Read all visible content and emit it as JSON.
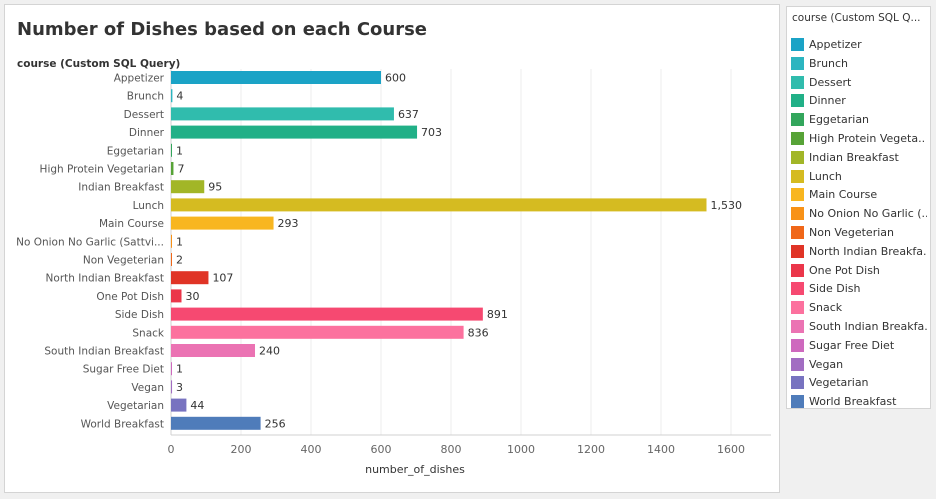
{
  "chart_data": {
    "type": "bar",
    "orientation": "horizontal",
    "title": "Number of Dishes based on each Course",
    "ylabel": "course (Custom SQL Query)",
    "xlabel": "number_of_dishes",
    "xlim": [
      0,
      1700
    ],
    "xticks": [
      "0",
      "200",
      "400",
      "600",
      "800",
      "1000",
      "1200",
      "1400",
      "1600"
    ],
    "grid": true,
    "legend_position": "right",
    "legend_title": "course (Custom SQL Q...",
    "categories": [
      "Appetizer",
      "Brunch",
      "Dessert",
      "Dinner",
      "Eggetarian",
      "High Protein Vegetarian",
      "Indian Breakfast",
      "Lunch",
      "Main Course",
      "No Onion No Garlic (Sattvi...",
      "Non Vegeterian",
      "North Indian Breakfast",
      "One Pot Dish",
      "Side Dish",
      "Snack",
      "South Indian Breakfast",
      "Sugar Free Diet",
      "Vegan",
      "Vegetarian",
      "World Breakfast"
    ],
    "values": [
      600,
      4,
      637,
      703,
      1,
      7,
      95,
      1530,
      293,
      1,
      2,
      107,
      30,
      891,
      836,
      240,
      1,
      3,
      44,
      256
    ],
    "value_labels": [
      "600",
      "4",
      "637",
      "703",
      "1",
      "7",
      "95",
      "1,530",
      "293",
      "1",
      "2",
      "107",
      "30",
      "891",
      "836",
      "240",
      "1",
      "3",
      "44",
      "256"
    ],
    "colors": [
      "#1ba3c6",
      "#2cb5c0",
      "#30bcad",
      "#21b087",
      "#33a65c",
      "#57a337",
      "#a2b627",
      "#d5bb21",
      "#f8b620",
      "#f89217",
      "#f06719",
      "#e03426",
      "#eb364a",
      "#f64971",
      "#fc719e",
      "#eb73b3",
      "#ce69be",
      "#a26dc2",
      "#7873c0",
      "#4f7cba"
    ],
    "legend_labels": [
      "Appetizer",
      "Brunch",
      "Dessert",
      "Dinner",
      "Eggetarian",
      "High Protein Vegeta..",
      "Indian Breakfast",
      "Lunch",
      "Main Course",
      "No Onion No Garlic (..",
      "Non Vegeterian",
      "North Indian Breakfa..",
      "One Pot Dish",
      "Side Dish",
      "Snack",
      "South Indian Breakfa..",
      "Sugar Free Diet",
      "Vegan",
      "Vegetarian",
      "World Breakfast"
    ]
  }
}
